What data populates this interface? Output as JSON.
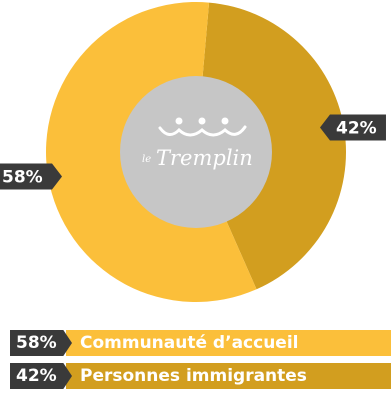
{
  "chart_data": {
    "type": "pie",
    "style": "donut",
    "categories": [
      "Personnes immigrantes",
      "Communauté d'accueil"
    ],
    "values": [
      42,
      58
    ],
    "value_labels": [
      "42%",
      "58%"
    ],
    "colors": [
      "#d29e1f",
      "#fbbf3a"
    ],
    "legend": [
      {
        "pct": "58%",
        "label": "Communauté d’accueil",
        "color": "#fbbf3a"
      },
      {
        "pct": "42%",
        "label": "Personnes immigrantes",
        "color": "#d29e1f"
      }
    ],
    "legend_placement": "bottom",
    "center_logo": {
      "text_small": "le",
      "text_main": "Tremplin"
    }
  }
}
